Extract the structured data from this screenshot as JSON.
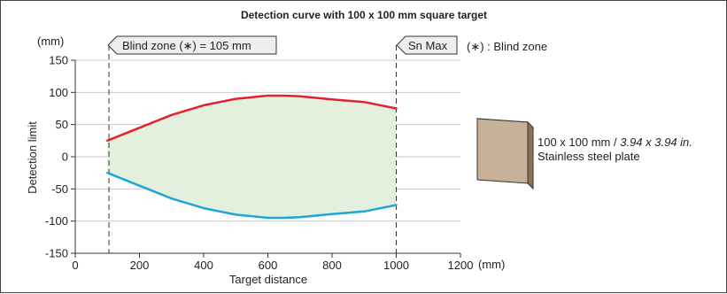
{
  "chart_data": {
    "type": "area",
    "title": "Detection curve with 100 x 100 mm square target",
    "xlabel": "Target distance",
    "xunit": "(mm)",
    "ylabel": "Detection limit",
    "yunit": "(mm)",
    "xlim": [
      0,
      1200
    ],
    "ylim": [
      -150,
      150
    ],
    "xticks": [
      0,
      200,
      400,
      600,
      800,
      1000,
      1200
    ],
    "yticks": [
      150,
      100,
      50,
      0,
      -50,
      -100,
      -150
    ],
    "grid": "horizontal",
    "series": [
      {
        "color": "#e3212f",
        "x": [
          100,
          200,
          300,
          400,
          500,
          600,
          650,
          700,
          800,
          900,
          1000
        ],
        "y": [
          25,
          45,
          65,
          80,
          90,
          95,
          95,
          94,
          89,
          85,
          75
        ]
      },
      {
        "color": "#1ea5de",
        "x": [
          100,
          200,
          300,
          400,
          500,
          600,
          650,
          700,
          800,
          900,
          1000
        ],
        "y": [
          -25,
          -45,
          -65,
          -80,
          -90,
          -95,
          -95,
          -94,
          -89,
          -85,
          -75
        ]
      }
    ],
    "fill_color": "#e3f0dd",
    "markers": [
      {
        "x": 105,
        "label": "Blind zone (∗) = 105 mm"
      },
      {
        "x": 1000,
        "label": "Sn Max"
      }
    ],
    "legend_note": "(∗) : Blind zone",
    "target": {
      "line1_plain": "100 x 100 mm / ",
      "line1_italic": "3.94 x 3.94 in.",
      "line2": "Stainless steel plate",
      "colors": {
        "face": "#c7b299",
        "side": "#8c7357",
        "edge": "#333333"
      }
    }
  }
}
